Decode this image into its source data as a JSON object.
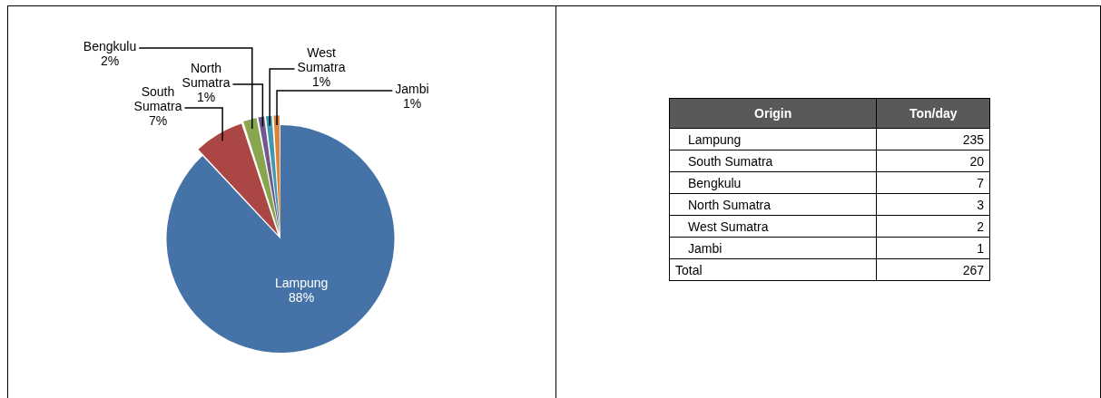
{
  "chart_data": [
    {
      "type": "pie",
      "categories": [
        "Lampung",
        "South Sumatra",
        "Bengkulu",
        "North Sumatra",
        "West Sumatra",
        "Jambi"
      ],
      "values": [
        88,
        7,
        2,
        1,
        1,
        1
      ],
      "colors": [
        "#4572a7",
        "#aa4643",
        "#89a54e",
        "#71588f",
        "#4198af",
        "#db843d"
      ],
      "value_labels": [
        "88%",
        "7%",
        "2%",
        "1%",
        "1%",
        "1%"
      ],
      "legend": false
    },
    {
      "type": "other",
      "categories": [
        "Lampung",
        "South Sumatra",
        "Bengkulu",
        "North Sumatra",
        "West Sumatra",
        "Jambi"
      ],
      "values": [
        235,
        20,
        7,
        3,
        2,
        1
      ],
      "data_labels": true,
      "annotations": [
        "Origin",
        "Ton/day",
        "Total"
      ],
      "totals": [
        "267"
      ]
    }
  ]
}
